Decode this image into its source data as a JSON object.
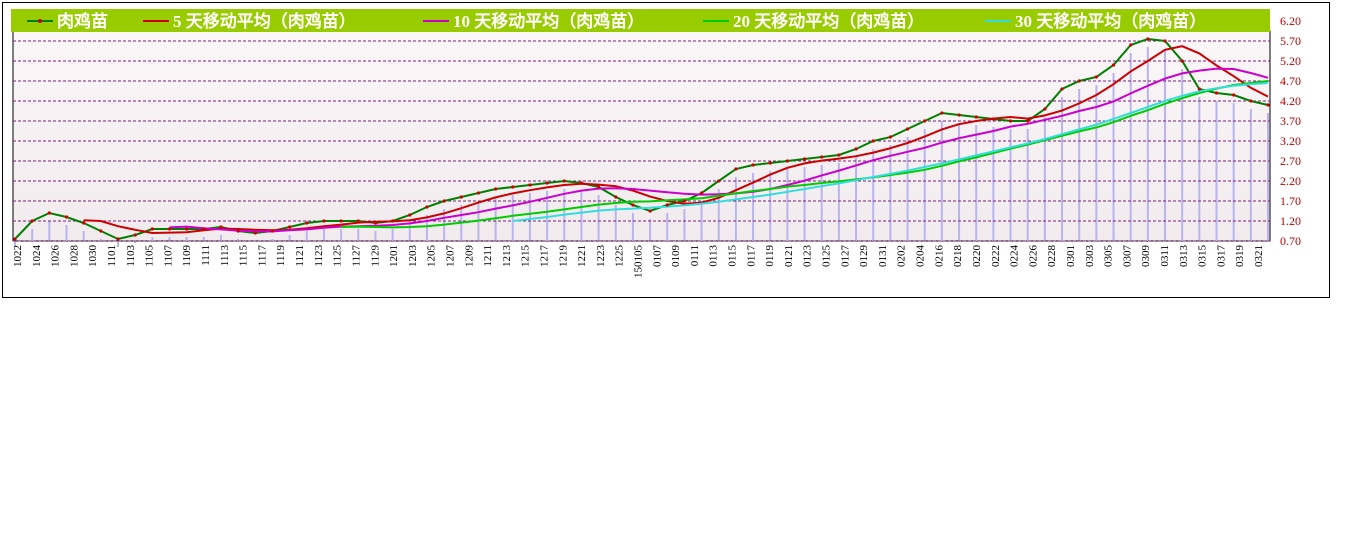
{
  "chart_data": {
    "type": "line",
    "title": "",
    "xlabel": "",
    "ylabel": "",
    "ylim": [
      0.7,
      6.2
    ],
    "y_ticks": [
      "6.20",
      "5.70",
      "5.20",
      "4.70",
      "4.20",
      "3.70",
      "3.20",
      "2.70",
      "2.20",
      "1.70",
      "1.20",
      "0.70"
    ],
    "x_tick_labels": [
      "1022",
      "1024",
      "1026",
      "1028",
      "1030",
      "1101",
      "1103",
      "1105",
      "1107",
      "1109",
      "1111",
      "1113",
      "1115",
      "1117",
      "1119",
      "1121",
      "1123",
      "1125",
      "1127",
      "1129",
      "1201",
      "1203",
      "1205",
      "1207",
      "1209",
      "1211",
      "1213",
      "1215",
      "1217",
      "1219",
      "1221",
      "1223",
      "1225",
      "150105",
      "0107",
      "0109",
      "0111",
      "0113",
      "0115",
      "0117",
      "0119",
      "0121",
      "0123",
      "0125",
      "0127",
      "0129",
      "0131",
      "0202",
      "0204",
      "0216",
      "0218",
      "0220",
      "0222",
      "0224",
      "0226",
      "0228",
      "0301",
      "0303",
      "0305",
      "0307",
      "0309",
      "0311",
      "0313",
      "0315",
      "0317",
      "0319",
      "0321"
    ],
    "legend": {
      "placement": "top",
      "background": "#99cc00"
    },
    "grid": true,
    "series": [
      {
        "name": "肉鸡苗",
        "color": "#008000",
        "marker_color": "#cc0000",
        "style": "dotted-markers",
        "values": [
          0.75,
          1.2,
          1.4,
          1.3,
          1.15,
          0.95,
          0.75,
          0.85,
          1.0,
          1.0,
          1.0,
          1.0,
          1.05,
          0.95,
          0.9,
          0.95,
          1.05,
          1.15,
          1.2,
          1.2,
          1.2,
          1.15,
          1.2,
          1.35,
          1.55,
          1.7,
          1.8,
          1.9,
          2.0,
          2.05,
          2.1,
          2.15,
          2.2,
          2.15,
          2.05,
          1.8,
          1.6,
          1.45,
          1.6,
          1.7,
          1.9,
          2.2,
          2.5,
          2.6,
          2.65,
          2.7,
          2.75,
          2.8,
          2.85,
          3.0,
          3.2,
          3.3,
          3.5,
          3.7,
          3.9,
          3.85,
          3.8,
          3.75,
          3.7,
          3.7,
          4.0,
          4.5,
          4.7,
          4.8,
          5.1,
          5.6,
          5.75,
          5.7,
          5.2,
          4.5,
          4.4,
          4.35,
          4.2,
          4.1
        ]
      },
      {
        "name": "5 天移动平均（肉鸡苗）",
        "color": "#cc0000",
        "values": [
          null,
          null,
          null,
          null,
          1.22,
          1.2,
          1.07,
          0.98,
          0.9,
          0.91,
          0.92,
          0.97,
          1.01,
          1.0,
          0.98,
          0.97,
          0.98,
          1.02,
          1.07,
          1.11,
          1.16,
          1.18,
          1.19,
          1.22,
          1.29,
          1.39,
          1.52,
          1.66,
          1.79,
          1.89,
          1.97,
          2.04,
          2.1,
          2.13,
          2.11,
          2.07,
          1.96,
          1.81,
          1.7,
          1.63,
          1.66,
          1.78,
          1.97,
          2.16,
          2.36,
          2.53,
          2.64,
          2.71,
          2.76,
          2.82,
          2.91,
          3.02,
          3.15,
          3.31,
          3.49,
          3.62,
          3.7,
          3.76,
          3.8,
          3.76,
          3.84,
          3.96,
          4.14,
          4.35,
          4.62,
          4.94,
          5.2,
          5.48,
          5.57,
          5.39,
          5.09,
          4.82,
          4.53,
          4.31
        ]
      },
      {
        "name": "10 天移动平均（肉鸡苗）",
        "color": "#cc00cc",
        "values": [
          null,
          null,
          null,
          null,
          null,
          null,
          null,
          null,
          null,
          1.04,
          1.06,
          1.02,
          0.99,
          0.96,
          0.94,
          0.94,
          0.97,
          0.99,
          1.03,
          1.06,
          1.07,
          1.08,
          1.1,
          1.14,
          1.2,
          1.28,
          1.35,
          1.42,
          1.51,
          1.59,
          1.68,
          1.78,
          1.88,
          1.96,
          2.01,
          2.02,
          2.0,
          1.96,
          1.92,
          1.88,
          1.86,
          1.87,
          1.89,
          1.93,
          2.0,
          2.1,
          2.21,
          2.34,
          2.46,
          2.59,
          2.72,
          2.83,
          2.93,
          3.03,
          3.16,
          3.27,
          3.36,
          3.45,
          3.56,
          3.63,
          3.73,
          3.83,
          3.95,
          4.05,
          4.19,
          4.39,
          4.58,
          4.76,
          4.89,
          4.96,
          5.01,
          5.0,
          4.9,
          4.78
        ]
      },
      {
        "name": "20 天移动平均（肉鸡苗）",
        "color": "#00cc00",
        "values": [
          null,
          null,
          null,
          null,
          null,
          null,
          null,
          null,
          null,
          null,
          null,
          null,
          null,
          null,
          null,
          null,
          null,
          null,
          null,
          1.05,
          1.06,
          1.05,
          1.04,
          1.05,
          1.07,
          1.11,
          1.16,
          1.21,
          1.27,
          1.33,
          1.38,
          1.43,
          1.49,
          1.55,
          1.61,
          1.65,
          1.68,
          1.69,
          1.72,
          1.74,
          1.77,
          1.83,
          1.89,
          1.95,
          2.0,
          2.06,
          2.1,
          2.15,
          2.19,
          2.24,
          2.29,
          2.35,
          2.41,
          2.48,
          2.58,
          2.69,
          2.79,
          2.9,
          3.01,
          3.11,
          3.22,
          3.33,
          3.44,
          3.54,
          3.67,
          3.83,
          3.97,
          4.13,
          4.27,
          4.4,
          4.51,
          4.6,
          4.65,
          4.7
        ]
      },
      {
        "name": "30 天移动平均（肉鸡苗）",
        "color": "#33dddd",
        "values": [
          null,
          null,
          null,
          null,
          null,
          null,
          null,
          null,
          null,
          null,
          null,
          null,
          null,
          null,
          null,
          null,
          null,
          null,
          null,
          null,
          null,
          null,
          null,
          null,
          null,
          null,
          null,
          null,
          null,
          1.2,
          1.25,
          1.3,
          1.36,
          1.41,
          1.46,
          1.49,
          1.51,
          1.53,
          1.56,
          1.59,
          1.63,
          1.68,
          1.74,
          1.8,
          1.86,
          1.93,
          2.0,
          2.07,
          2.14,
          2.22,
          2.3,
          2.38,
          2.46,
          2.55,
          2.64,
          2.74,
          2.84,
          2.94,
          3.04,
          3.14,
          3.25,
          3.37,
          3.49,
          3.61,
          3.75,
          3.9,
          4.05,
          4.2,
          4.33,
          4.44,
          4.52,
          4.58,
          4.62,
          4.65
        ]
      }
    ]
  }
}
